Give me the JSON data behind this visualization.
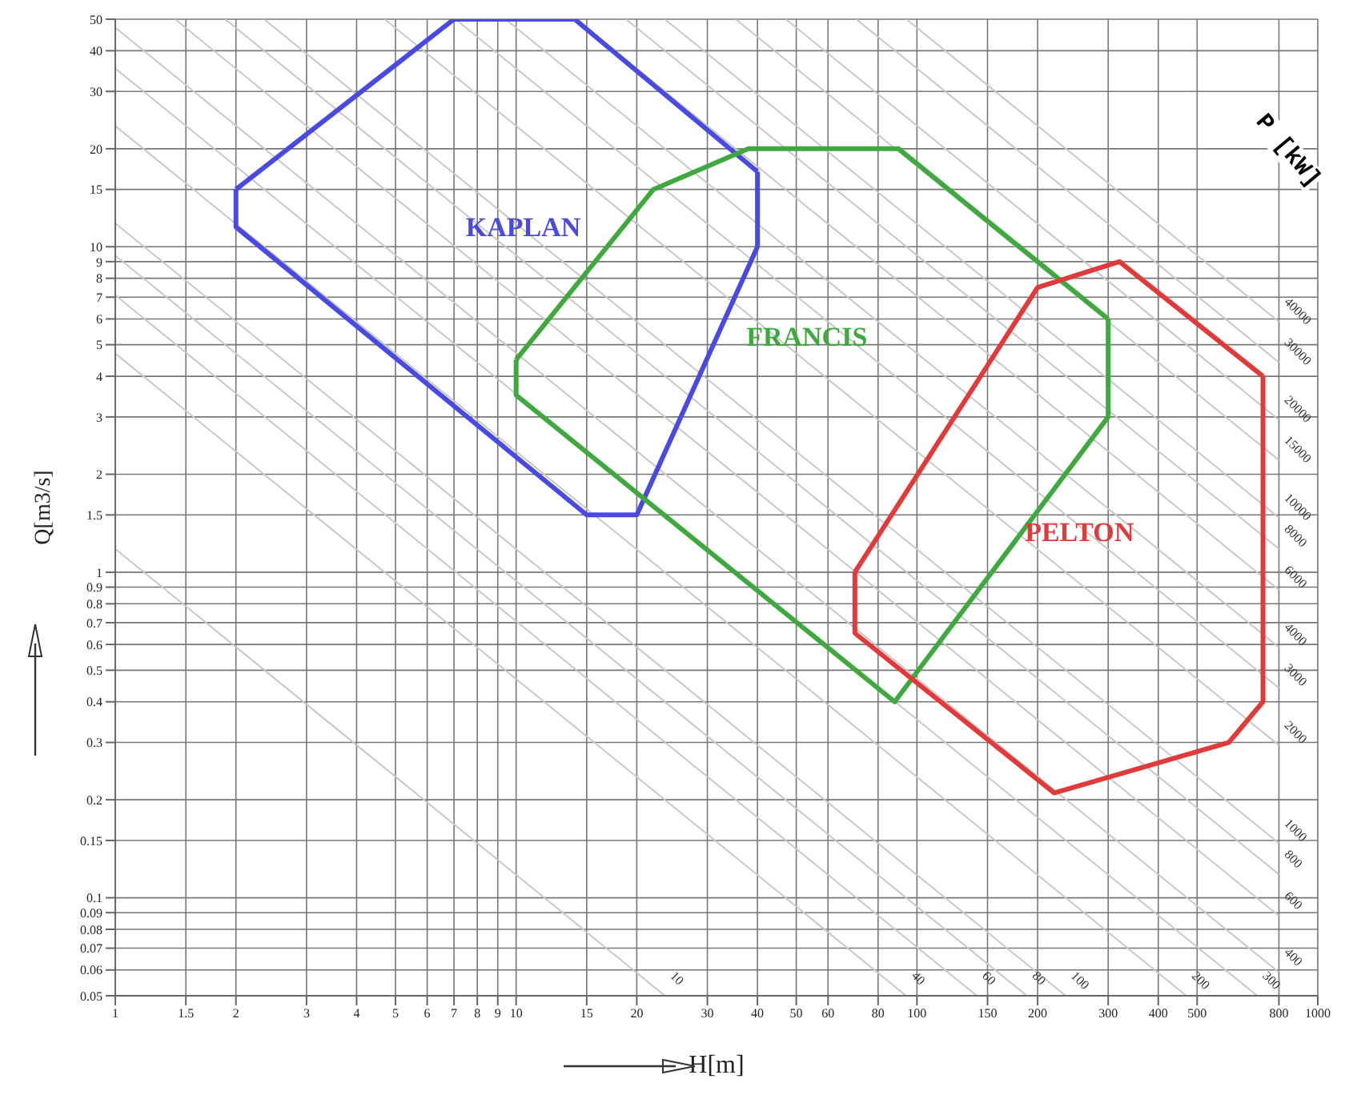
{
  "chart_data": {
    "type": "line",
    "xlabel": "H[m]",
    "ylabel": "Q[m3/s]",
    "annotations": [
      "P [kW]"
    ],
    "log": "xy",
    "grid": true,
    "marker": "none",
    "line_style": "solid",
    "xlim": [
      1,
      1000
    ],
    "ylim": [
      0.05,
      50
    ],
    "xticks": [
      1,
      1.5,
      2,
      3,
      4,
      5,
      6,
      7,
      8,
      9,
      10,
      15,
      20,
      30,
      40,
      50,
      60,
      80,
      100,
      150,
      200,
      300,
      400,
      500,
      800,
      1000
    ],
    "yticks": [
      0.05,
      0.06,
      0.07,
      0.08,
      0.09,
      0.1,
      0.15,
      0.2,
      0.3,
      0.4,
      0.5,
      0.6,
      0.7,
      0.8,
      0.9,
      1,
      1.5,
      2,
      3,
      4,
      5,
      6,
      7,
      8,
      9,
      10,
      15,
      20,
      30,
      40,
      50
    ],
    "series": [
      {
        "name": "10",
        "color": "#c8c8c8",
        "x": [
          1,
          23.5
        ],
        "values": [
          1.18,
          0.05
        ]
      },
      {
        "name": "40",
        "color": "#c8c8c8",
        "x": [
          1,
          94
        ],
        "values": [
          4.7,
          0.05
        ]
      },
      {
        "name": "60",
        "color": "#c8c8c8",
        "x": [
          1,
          141
        ],
        "values": [
          7.1,
          0.05
        ]
      },
      {
        "name": "80",
        "color": "#c8c8c8",
        "x": [
          1,
          188
        ],
        "values": [
          9.4,
          0.05
        ]
      },
      {
        "name": "100",
        "color": "#c8c8c8",
        "x": [
          1,
          235
        ],
        "values": [
          11.8,
          0.05
        ]
      },
      {
        "name": "200",
        "color": "#c8c8c8",
        "x": [
          1,
          470
        ],
        "values": [
          23.5,
          0.05
        ]
      },
      {
        "name": "300",
        "color": "#c8c8c8",
        "x": [
          1,
          706
        ],
        "values": [
          35.3,
          0.05
        ]
      },
      {
        "name": "400",
        "color": "#c8c8c8",
        "x": [
          1,
          800
        ],
        "values": [
          47.1,
          0.059
        ]
      },
      {
        "name": "600",
        "color": "#c8c8c8",
        "x": [
          1.41,
          800
        ],
        "values": [
          50,
          0.088
        ]
      },
      {
        "name": "800",
        "color": "#c8c8c8",
        "x": [
          1.88,
          800
        ],
        "values": [
          50,
          0.118
        ]
      },
      {
        "name": "1000",
        "color": "#c8c8c8",
        "x": [
          2.35,
          800
        ],
        "values": [
          50,
          0.147
        ]
      },
      {
        "name": "2000",
        "color": "#c8c8c8",
        "x": [
          4.7,
          800
        ],
        "values": [
          50,
          0.294
        ]
      },
      {
        "name": "3000",
        "color": "#c8c8c8",
        "x": [
          7.06,
          800
        ],
        "values": [
          50,
          0.441
        ]
      },
      {
        "name": "4000",
        "color": "#c8c8c8",
        "x": [
          9.41,
          800
        ],
        "values": [
          50,
          0.588
        ]
      },
      {
        "name": "6000",
        "color": "#c8c8c8",
        "x": [
          14.1,
          800
        ],
        "values": [
          50,
          0.882
        ]
      },
      {
        "name": "8000",
        "color": "#c8c8c8",
        "x": [
          18.8,
          800
        ],
        "values": [
          50,
          1.18
        ]
      },
      {
        "name": "10000",
        "color": "#c8c8c8",
        "x": [
          23.5,
          800
        ],
        "values": [
          50,
          1.47
        ]
      },
      {
        "name": "15000",
        "color": "#c8c8c8",
        "x": [
          35.3,
          800
        ],
        "values": [
          50,
          2.21
        ]
      },
      {
        "name": "20000",
        "color": "#c8c8c8",
        "x": [
          47.1,
          800
        ],
        "values": [
          50,
          2.94
        ]
      },
      {
        "name": "30000",
        "color": "#c8c8c8",
        "x": [
          70.6,
          800
        ],
        "values": [
          50,
          4.41
        ]
      },
      {
        "name": "40000",
        "color": "#c8c8c8",
        "x": [
          94.1,
          800
        ],
        "values": [
          50,
          5.88
        ]
      },
      {
        "name": "KAPLAN",
        "color": "#4a4ae0",
        "x": [
          2,
          7,
          14,
          40
        ],
        "values": [
          15,
          50,
          50,
          17
        ]
      },
      {
        "color": "#4a4ae0",
        "x": [
          2,
          2,
          15,
          20,
          40,
          40
        ],
        "values": [
          15,
          11.5,
          1.5,
          1.5,
          10,
          17
        ]
      },
      {
        "name": "FRANCIS",
        "color": "#3fa83f",
        "x": [
          10,
          22,
          38,
          90,
          300
        ],
        "values": [
          4.5,
          15,
          20,
          20,
          6
        ]
      },
      {
        "color": "#3fa83f",
        "x": [
          10,
          10,
          88,
          300,
          300
        ],
        "values": [
          4.5,
          3.5,
          0.4,
          3,
          6
        ]
      },
      {
        "name": "PELTON",
        "color": "#e03a3a",
        "x": [
          70,
          200,
          320,
          730
        ],
        "values": [
          1,
          7.5,
          9,
          4
        ]
      },
      {
        "color": "#e03a3a",
        "x": [
          70,
          70,
          220,
          600,
          730,
          730
        ],
        "values": [
          1,
          0.65,
          0.21,
          0.3,
          0.4,
          4
        ]
      }
    ]
  }
}
